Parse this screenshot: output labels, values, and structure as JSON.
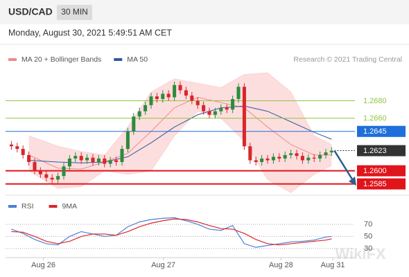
{
  "header": {
    "symbol": "USD/CAD",
    "timeframe": "30 MIN",
    "timestamp": "Monday, August 30, 2021 5:49:51 AM CET",
    "watermark": "WikiFX"
  },
  "chart_data": [
    {
      "type": "candlestick",
      "credit": "Research © 2021 Trading Central",
      "xlim": [
        -1,
        59
      ],
      "ylim": [
        1.2572,
        1.272
      ],
      "up_color": "#2e8b3e",
      "down_color": "#d9262b",
      "open": [
        1.263,
        1.2628,
        1.2625,
        1.2618,
        1.261,
        1.26,
        1.2596,
        1.2592,
        1.259,
        1.2594,
        1.2605,
        1.2614,
        1.2617,
        1.2612,
        1.2615,
        1.261,
        1.2614,
        1.2608,
        1.2612,
        1.261,
        1.2625,
        1.2645,
        1.2662,
        1.2668,
        1.2675,
        1.2685,
        1.2682,
        1.2688,
        1.2684,
        1.2698,
        1.2692,
        1.2686,
        1.268,
        1.2675,
        1.2668,
        1.2664,
        1.2668,
        1.2672,
        1.267,
        1.2682,
        1.2696,
        1.2628,
        1.2612,
        1.261,
        1.2614,
        1.2612,
        1.2616,
        1.2614,
        1.2618,
        1.262,
        1.2617,
        1.2612,
        1.2615,
        1.2614,
        1.2618,
        1.2621
      ],
      "high": [
        1.2634,
        1.2632,
        1.2629,
        1.2622,
        1.2614,
        1.2604,
        1.26,
        1.2596,
        1.2598,
        1.2609,
        1.2618,
        1.2621,
        1.2621,
        1.2619,
        1.2619,
        1.2618,
        1.2618,
        1.2616,
        1.2616,
        1.2629,
        1.2649,
        1.2666,
        1.2672,
        1.2679,
        1.2689,
        1.2689,
        1.2692,
        1.2692,
        1.2702,
        1.2702,
        1.2696,
        1.269,
        1.2684,
        1.2679,
        1.2672,
        1.2672,
        1.2676,
        1.2676,
        1.2686,
        1.27,
        1.27,
        1.2632,
        1.2616,
        1.2618,
        1.2618,
        1.262,
        1.262,
        1.2622,
        1.2624,
        1.2624,
        1.2621,
        1.2619,
        1.2619,
        1.2622,
        1.2625,
        1.2627
      ],
      "low": [
        1.2624,
        1.2621,
        1.2614,
        1.2606,
        1.2596,
        1.2592,
        1.2588,
        1.2586,
        1.2586,
        1.259,
        1.2601,
        1.261,
        1.2608,
        1.2608,
        1.2606,
        1.2606,
        1.2604,
        1.2604,
        1.2606,
        1.2606,
        1.2621,
        1.2641,
        1.2658,
        1.2664,
        1.2671,
        1.2678,
        1.2678,
        1.268,
        1.268,
        1.2688,
        1.2682,
        1.2676,
        1.2671,
        1.2664,
        1.266,
        1.266,
        1.2664,
        1.2666,
        1.2666,
        1.2678,
        1.2624,
        1.2608,
        1.2606,
        1.2606,
        1.2608,
        1.2608,
        1.261,
        1.261,
        1.2614,
        1.2613,
        1.2608,
        1.2608,
        1.261,
        1.261,
        1.2614,
        1.2617
      ],
      "close": [
        1.2628,
        1.2625,
        1.2618,
        1.261,
        1.26,
        1.2596,
        1.2592,
        1.259,
        1.2594,
        1.2605,
        1.2614,
        1.2617,
        1.2612,
        1.2615,
        1.261,
        1.2614,
        1.2608,
        1.2612,
        1.261,
        1.2625,
        1.2645,
        1.2662,
        1.2668,
        1.2675,
        1.2685,
        1.2682,
        1.2688,
        1.2684,
        1.2698,
        1.2692,
        1.2686,
        1.268,
        1.2675,
        1.2668,
        1.2664,
        1.2668,
        1.2672,
        1.267,
        1.2682,
        1.2696,
        1.2628,
        1.2612,
        1.261,
        1.2614,
        1.2612,
        1.2616,
        1.2614,
        1.2618,
        1.262,
        1.2617,
        1.2612,
        1.2615,
        1.2614,
        1.2618,
        1.2621,
        1.2623
      ],
      "series": [
        {
          "name": "MA 20 + Bollinger Bands",
          "color": "#f08a8a",
          "band_color": "#fbd3d3",
          "x": [
            3,
            8,
            12,
            16,
            20,
            24,
            28,
            32,
            36,
            40,
            44,
            48,
            52,
            55
          ],
          "values": [
            1.2618,
            1.2603,
            1.2602,
            1.261,
            1.262,
            1.2645,
            1.2672,
            1.2684,
            1.2678,
            1.2672,
            1.265,
            1.263,
            1.2618,
            1.2618
          ],
          "upper": [
            1.264,
            1.2628,
            1.2622,
            1.2618,
            1.265,
            1.269,
            1.2705,
            1.27,
            1.2695,
            1.271,
            1.2712,
            1.269,
            1.264,
            1.263
          ],
          "lower": [
            1.26,
            1.258,
            1.2582,
            1.26,
            1.2596,
            1.26,
            1.264,
            1.2668,
            1.266,
            1.2634,
            1.259,
            1.2575,
            1.2596,
            1.2606
          ]
        },
        {
          "name": "MA 50",
          "color": "#2d5aa0",
          "x": [
            3,
            8,
            12,
            16,
            20,
            24,
            28,
            32,
            36,
            40,
            44,
            48,
            52,
            55
          ],
          "values": [
            1.2612,
            1.261,
            1.2609,
            1.261,
            1.2616,
            1.2632,
            1.265,
            1.2664,
            1.2672,
            1.2674,
            1.2668,
            1.2656,
            1.2644,
            1.2636
          ]
        }
      ],
      "levels": [
        {
          "value": 1.268,
          "label": "1.2680",
          "color": "#8dc63f",
          "style": "text"
        },
        {
          "value": 1.266,
          "label": "1.2660",
          "color": "#8dc63f",
          "style": "text"
        },
        {
          "value": 1.2645,
          "label": "1.2645",
          "color": "#1e6fd9",
          "style": "box"
        },
        {
          "value": 1.2623,
          "label": "1.2623",
          "color": "#333333",
          "style": "current"
        },
        {
          "value": 1.26,
          "label": "1.2600",
          "color": "#e0141b",
          "style": "box"
        },
        {
          "value": 1.2585,
          "label": "1.2585",
          "color": "#e0141b",
          "style": "box"
        }
      ]
    },
    {
      "type": "line",
      "xlim": [
        -1,
        59
      ],
      "ylim": [
        15,
        86
      ],
      "yticks": [
        30,
        50,
        70
      ],
      "grid": true,
      "xticks": [
        {
          "value": 5.5,
          "label": "Aug 26"
        },
        {
          "value": 26.1,
          "label": "Aug 27"
        },
        {
          "value": 46.3,
          "label": "Aug 28"
        },
        {
          "value": 55.2,
          "label": "Aug 31"
        }
      ],
      "series": [
        {
          "name": "RSI",
          "color": "#4a7fd4",
          "x": [
            0,
            2,
            4,
            6,
            8,
            10,
            12,
            14,
            16,
            18,
            20,
            22,
            24,
            26,
            28,
            30,
            32,
            34,
            36,
            38,
            40,
            42,
            44,
            46,
            48,
            50,
            52,
            54,
            55
          ],
          "values": [
            62,
            55,
            45,
            38,
            36,
            50,
            58,
            54,
            50,
            52,
            66,
            74,
            78,
            80,
            81,
            76,
            70,
            62,
            60,
            68,
            38,
            32,
            35,
            38,
            41,
            42,
            44,
            49,
            50
          ]
        },
        {
          "name": "9MA",
          "color": "#d9262b",
          "x": [
            0,
            2,
            4,
            6,
            8,
            10,
            12,
            14,
            16,
            18,
            20,
            22,
            24,
            26,
            28,
            30,
            32,
            34,
            36,
            38,
            40,
            42,
            44,
            46,
            48,
            50,
            52,
            54,
            55
          ],
          "values": [
            58,
            57,
            50,
            42,
            38,
            42,
            50,
            54,
            54,
            52,
            58,
            66,
            72,
            76,
            79,
            78,
            74,
            68,
            63,
            62,
            55,
            45,
            38,
            36,
            38,
            40,
            42,
            44,
            46
          ]
        }
      ]
    }
  ]
}
